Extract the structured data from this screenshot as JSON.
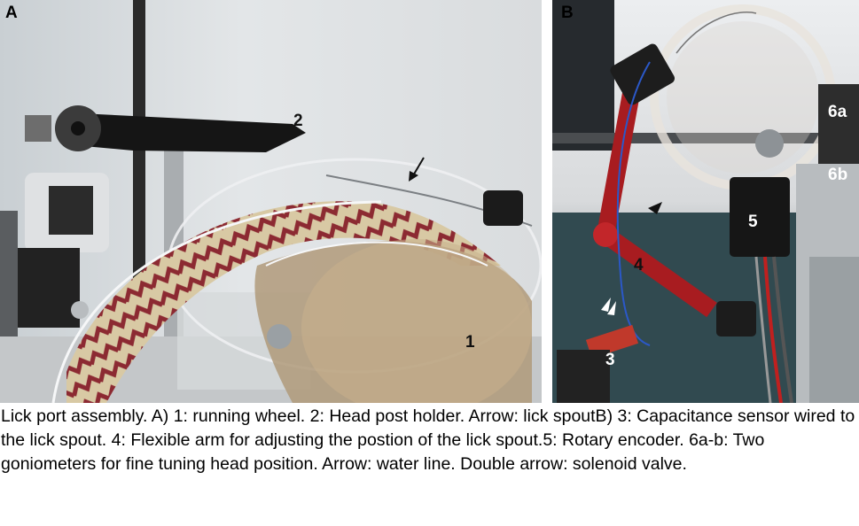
{
  "panels": {
    "a": {
      "letter": "A",
      "labels": {
        "wheel": "1",
        "holder": "2"
      }
    },
    "b": {
      "letter": "B",
      "labels": {
        "sensor": "3",
        "arm": "4",
        "encoder": "5",
        "gonio_a": "6a",
        "gonio_b": "6b"
      }
    }
  },
  "caption": "Lick port assembly. A) 1: running wheel. 2: Head post holder. Arrow: lick spoutB) 3: Capacitance sensor wired to the lick spout. 4: Flexible arm for adjusting the postion of the lick spout.5: Rotary encoder. 6a-b: Two goniometers for fine tuning head position. Arrow: water line. Double arrow: solenoid valve."
}
